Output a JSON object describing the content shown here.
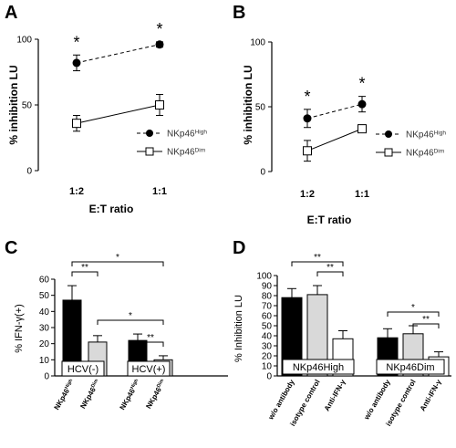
{
  "chart_data": [
    {
      "panel": "A",
      "type": "line",
      "categories": [
        "1:2",
        "1:1"
      ],
      "xlabel": "E:T ratio",
      "ylabel": "% inhibition LU",
      "ylim": [
        0,
        100
      ],
      "yticks": [
        "0",
        "50",
        "100"
      ],
      "series": [
        {
          "name": "NKp46",
          "sup": "High",
          "marker": "filled-circle",
          "line": "dashed",
          "values": [
            82,
            96
          ],
          "errors": [
            6,
            2
          ]
        },
        {
          "name": "NKp46",
          "sup": "Dim",
          "marker": "open-square",
          "line": "solid",
          "values": [
            36,
            50
          ],
          "errors": [
            6,
            8
          ]
        }
      ],
      "significance": [
        "*",
        "*"
      ]
    },
    {
      "panel": "B",
      "type": "line",
      "categories": [
        "1:2",
        "1:1"
      ],
      "xlabel": "E:T ratio",
      "ylabel": "% inhibition LU",
      "ylim": [
        0,
        100
      ],
      "yticks": [
        "0",
        "50",
        "100"
      ],
      "series": [
        {
          "name": "NKp46",
          "sup": "High",
          "marker": "filled-circle",
          "line": "dashed",
          "values": [
            41,
            52
          ],
          "errors": [
            7,
            6
          ]
        },
        {
          "name": "NKp46",
          "sup": "Dim",
          "marker": "open-square",
          "line": "solid",
          "values": [
            16,
            33
          ],
          "errors": [
            8,
            3
          ]
        }
      ],
      "significance": [
        "*",
        "*"
      ]
    },
    {
      "panel": "C",
      "type": "bar",
      "ylabel": "% IFN-γ(+)",
      "ylim": [
        0,
        60
      ],
      "yticks": [
        "0",
        "10",
        "20",
        "30",
        "40",
        "50",
        "60"
      ],
      "groups": [
        "HCV(-)",
        "HCV(+)"
      ],
      "categories": [
        {
          "name": "NKp46",
          "sup": "High"
        },
        {
          "name": "NKp46",
          "sup": "Dim"
        },
        {
          "name": "NKp46",
          "sup": "High"
        },
        {
          "name": "NKp46",
          "sup": "Dim"
        }
      ],
      "values": [
        47,
        21,
        22,
        10
      ],
      "errors": [
        9,
        4,
        4,
        2.5
      ],
      "bar_colors": [
        "#000000",
        "#d9d9d9",
        "#000000",
        "#d9d9d9"
      ],
      "significance": [
        {
          "label": "*",
          "from": 0,
          "to": 3
        },
        {
          "label": "**",
          "from": 0,
          "to": 1
        },
        {
          "label": "*",
          "from": 1,
          "to": 3
        },
        {
          "label": "**",
          "from": 2,
          "to": 3
        }
      ]
    },
    {
      "panel": "D",
      "type": "bar",
      "ylabel": "% Inhibition LU",
      "ylim": [
        0,
        100
      ],
      "yticks": [
        "0",
        "10",
        "20",
        "30",
        "40",
        "50",
        "60",
        "70",
        "80",
        "90",
        "100"
      ],
      "groups": [
        "NKp46High",
        "NKp46Dim"
      ],
      "categories": [
        "w/o antibody",
        "isotype control",
        "Anti-IFN-γ",
        "w/o antibody",
        "isotype control",
        "Anti-IFN-γ"
      ],
      "values": [
        78,
        81,
        37,
        38,
        42,
        19
      ],
      "errors": [
        9,
        9,
        8,
        9,
        8,
        5
      ],
      "bar_colors": [
        "#000000",
        "#d9d9d9",
        "#ffffff",
        "#000000",
        "#d9d9d9",
        "#ffffff"
      ],
      "significance": [
        {
          "label": "**",
          "from": 0,
          "to": 2
        },
        {
          "label": "**",
          "from": 1,
          "to": 2
        },
        {
          "label": "*",
          "from": 3,
          "to": 5
        },
        {
          "label": "**",
          "from": 4,
          "to": 5
        }
      ]
    }
  ],
  "panel_labels": [
    "A",
    "B",
    "C",
    "D"
  ]
}
